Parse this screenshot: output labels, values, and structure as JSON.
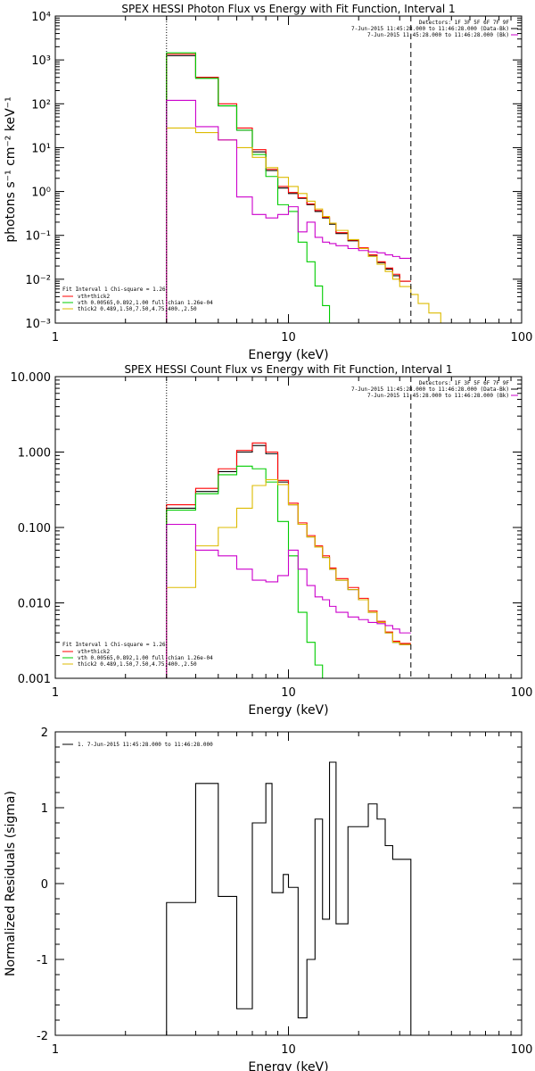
{
  "chart_data": [
    {
      "type": "line",
      "title": "SPEX HESSI Photon Flux vs Energy with Fit Function, Interval 1",
      "xlabel": "Energy (keV)",
      "ylabel": "photons s⁻¹ cm⁻² keV⁻¹",
      "xscale": "log",
      "yscale": "log",
      "xlim": [
        1,
        100
      ],
      "ylim": [
        0.001,
        10000
      ],
      "x_ticks": [
        "1",
        "10",
        "100"
      ],
      "y_ticks": [
        "10⁻³",
        "10⁻²",
        "10⁻¹",
        "10⁰",
        "10¹",
        "10²",
        "10³",
        "10⁴"
      ],
      "vlines": [
        {
          "x": 3,
          "style": "dotted"
        },
        {
          "x": 33.5,
          "style": "dashed"
        }
      ],
      "legend_topright": [
        "Detectors: 1F 3F 5F 6F 7F 9F",
        "7-Jun-2015 11:45:28.000 to 11:46:28.000 (Data-Bk)",
        "7-Jun-2015 11:45:28.000 to 11:46:28.000 (Bk)"
      ],
      "legend_bottomleft_header": "Fit Interval 1   Chi-square = 1.26",
      "legend_bottomleft": [
        "vth+thick2",
        "vth 0.00565,0.892,1.00  full chian 1.26e-04",
        "thick2 0.489,1.50,7.50,4.75,400.,2.50"
      ],
      "series": [
        {
          "color": "#000000",
          "edges": [
            3,
            4,
            5,
            6,
            7,
            8,
            9,
            10,
            11,
            12,
            13,
            14,
            15,
            16,
            18,
            20,
            22,
            24,
            26,
            28,
            30,
            33.5
          ],
          "values": [
            1250,
            400,
            90,
            25,
            8,
            3,
            1.2,
            0.9,
            0.7,
            0.5,
            0.35,
            0.25,
            0.18,
            0.11,
            0.075,
            0.05,
            0.035,
            0.024,
            0.017,
            0.012,
            0.009
          ]
        },
        {
          "color": "#ff0000",
          "edges": [
            3,
            4,
            5,
            6,
            7,
            8,
            9,
            10,
            11,
            12,
            13,
            14,
            15,
            16,
            18,
            20,
            22,
            24,
            26,
            28,
            30,
            33.5
          ],
          "values": [
            1350,
            400,
            100,
            28,
            9,
            3.2,
            1.3,
            0.95,
            0.72,
            0.52,
            0.37,
            0.26,
            0.19,
            0.115,
            0.078,
            0.052,
            0.036,
            0.025,
            0.018,
            0.013,
            0.009
          ]
        },
        {
          "color": "#00cc00",
          "edges": [
            3,
            4,
            5,
            6,
            7,
            8,
            9,
            10,
            11,
            12,
            13,
            14,
            15,
            16
          ],
          "values": [
            1450,
            380,
            90,
            25,
            7,
            2.2,
            0.5,
            0.35,
            0.07,
            0.025,
            0.007,
            0.0025,
            0.001
          ]
        },
        {
          "color": "#ddbb00",
          "edges": [
            3,
            4,
            5,
            6,
            7,
            8,
            9,
            10,
            11,
            12,
            13,
            14,
            15,
            16,
            18,
            20,
            22,
            24,
            26,
            28,
            30,
            33.5,
            36,
            40,
            45,
            50
          ],
          "values": [
            28,
            22,
            15,
            10,
            6,
            3.5,
            2.1,
            1.3,
            0.9,
            0.6,
            0.4,
            0.27,
            0.19,
            0.13,
            0.08,
            0.05,
            0.033,
            0.022,
            0.015,
            0.01,
            0.0068,
            0.0045,
            0.0028,
            0.0017,
            0.001
          ]
        },
        {
          "color": "#cc00cc",
          "edges": [
            3,
            4,
            5,
            6,
            7,
            8,
            9,
            10,
            11,
            12,
            13,
            14,
            15,
            16,
            18,
            20,
            22,
            24,
            26,
            28,
            30,
            33.5
          ],
          "values": [
            120,
            30,
            15,
            0.75,
            0.3,
            0.25,
            0.3,
            0.45,
            0.12,
            0.2,
            0.09,
            0.07,
            0.065,
            0.058,
            0.05,
            0.045,
            0.042,
            0.04,
            0.036,
            0.033,
            0.03
          ]
        }
      ]
    },
    {
      "type": "line",
      "title": "SPEX HESSI Count Flux vs Energy with Fit Function, Interval 1",
      "xlabel": "Energy (keV)",
      "ylabel": "",
      "xscale": "log",
      "yscale": "log",
      "xlim": [
        1,
        100
      ],
      "ylim": [
        0.001,
        10
      ],
      "x_ticks": [
        "1",
        "10",
        "100"
      ],
      "y_ticks": [
        "0.001",
        "0.010",
        "0.100",
        "1.000",
        "10.000"
      ],
      "vlines": [
        {
          "x": 3,
          "style": "dotted"
        },
        {
          "x": 33.5,
          "style": "dashed"
        }
      ],
      "legend_topright": [
        "Detectors: 1F 3F 5F 6F 7F 9F",
        "7-Jun-2015 11:45:28.000 to 11:46:28.000 (Data-Bk)",
        "7-Jun-2015 11:45:28.000 to 11:46:28.000 (Bk)"
      ],
      "legend_bottomleft_header": "Fit Interval 1   Chi-square = 1.26",
      "legend_bottomleft": [
        "vth+thick2",
        "vth 0.00565,0.892,1.00  full chian 1.26e-04",
        "thick2 0.489,1.50,7.50,4.75,400.,2.50"
      ],
      "series": [
        {
          "color": "#000000",
          "edges": [
            3,
            4,
            5,
            6,
            7,
            8,
            9,
            10,
            11,
            12,
            13,
            14,
            15,
            16,
            18,
            20,
            22,
            24,
            26,
            28,
            30,
            33.5
          ],
          "values": [
            0.18,
            0.3,
            0.55,
            1.0,
            1.22,
            0.95,
            0.4,
            0.2,
            0.11,
            0.075,
            0.055,
            0.04,
            0.028,
            0.02,
            0.015,
            0.011,
            0.0075,
            0.0055,
            0.004,
            0.003,
            0.0028
          ]
        },
        {
          "color": "#ff0000",
          "edges": [
            3,
            4,
            5,
            6,
            7,
            8,
            9,
            10,
            11,
            12,
            13,
            14,
            15,
            16,
            18,
            20,
            22,
            24,
            26,
            28,
            30,
            33.5
          ],
          "values": [
            0.2,
            0.33,
            0.6,
            1.05,
            1.32,
            1.0,
            0.42,
            0.21,
            0.115,
            0.078,
            0.057,
            0.042,
            0.029,
            0.021,
            0.016,
            0.0115,
            0.0078,
            0.0057,
            0.0041,
            0.0031,
            0.0029
          ]
        },
        {
          "color": "#00cc00",
          "edges": [
            3,
            4,
            5,
            6,
            7,
            8,
            9,
            10,
            11,
            12,
            13,
            14,
            15
          ],
          "values": [
            0.17,
            0.28,
            0.5,
            0.65,
            0.6,
            0.4,
            0.12,
            0.042,
            0.0075,
            0.003,
            0.0015,
            0.001
          ]
        },
        {
          "color": "#ddbb00",
          "edges": [
            3,
            4,
            5,
            6,
            7,
            8,
            9,
            10,
            11,
            12,
            13,
            14,
            15,
            16,
            18,
            20,
            22,
            24,
            26,
            28,
            30,
            33.5
          ],
          "values": [
            0.016,
            0.057,
            0.1,
            0.18,
            0.36,
            0.43,
            0.37,
            0.2,
            0.11,
            0.075,
            0.055,
            0.04,
            0.028,
            0.02,
            0.015,
            0.011,
            0.0075,
            0.0055,
            0.004,
            0.003,
            0.0028
          ]
        },
        {
          "color": "#cc00cc",
          "edges": [
            3,
            4,
            5,
            6,
            7,
            8,
            9,
            10,
            11,
            12,
            13,
            14,
            15,
            16,
            18,
            20,
            22,
            24,
            26,
            28,
            30,
            33.5
          ],
          "values": [
            0.11,
            0.05,
            0.042,
            0.028,
            0.02,
            0.019,
            0.023,
            0.05,
            0.028,
            0.017,
            0.012,
            0.011,
            0.009,
            0.0075,
            0.0065,
            0.006,
            0.0055,
            0.0053,
            0.005,
            0.0045,
            0.004
          ]
        }
      ]
    },
    {
      "type": "line",
      "title": "",
      "xlabel": "Energy (keV)",
      "ylabel": "Normalized Residuals (sigma)",
      "xscale": "log",
      "yscale": "linear",
      "xlim": [
        1,
        100
      ],
      "ylim": [
        -2,
        2
      ],
      "x_ticks": [
        "1",
        "10",
        "100"
      ],
      "y_ticks": [
        "-2",
        "-1",
        "0",
        "1",
        "2"
      ],
      "legend_topleft": [
        "1.  7-Jun-2015 11:45:28.000 to 11:46:28.000"
      ],
      "series": [
        {
          "color": "#000000",
          "edges": [
            3,
            3.5,
            4,
            4.5,
            5,
            5.5,
            6,
            6.5,
            7,
            7.5,
            8,
            8.5,
            9,
            9.5,
            10,
            11,
            12,
            13,
            14,
            15,
            16,
            18,
            20,
            22,
            24,
            26,
            28,
            30,
            33.5
          ],
          "values": [
            -0.25,
            -0.25,
            1.32,
            1.32,
            -0.17,
            -0.17,
            -1.65,
            -1.65,
            0.8,
            0.8,
            1.32,
            -0.12,
            -0.12,
            0.12,
            -0.05,
            -1.77,
            -1.0,
            0.85,
            -0.47,
            1.6,
            -0.53,
            0.75,
            0.75,
            1.05,
            0.85,
            0.5,
            0.32,
            0.32
          ]
        }
      ]
    }
  ]
}
